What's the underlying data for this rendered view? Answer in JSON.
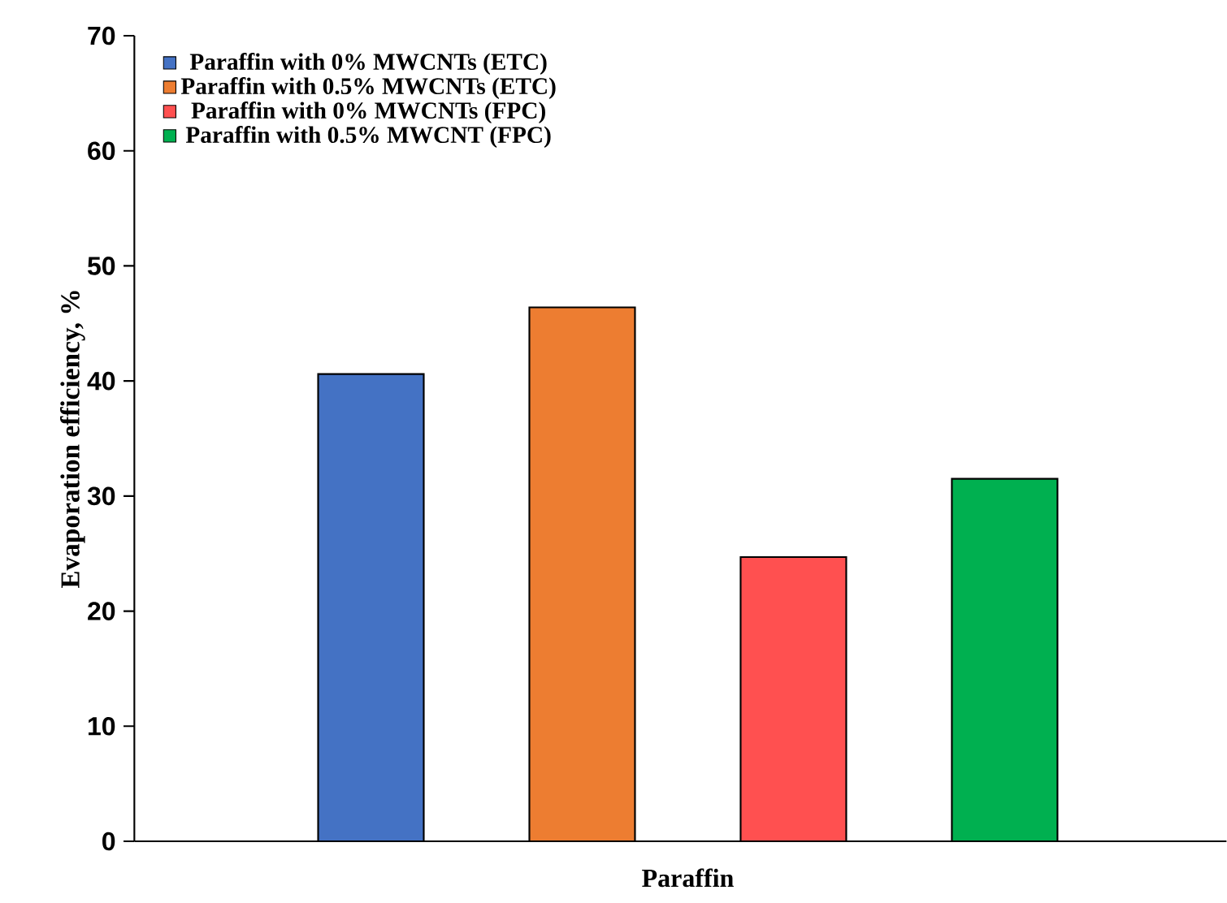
{
  "chart_data": {
    "type": "bar",
    "ylabel": "Evaporation efficiency, %",
    "categories": [
      "Paraffin"
    ],
    "series": [
      {
        "name": "Paraffin with 0% MWCNTs (ETC)",
        "color": "#4472c4",
        "values": [
          40.6
        ]
      },
      {
        "name": "Paraffin with 0.5% MWCNTs (ETC)",
        "color": "#ed7d31",
        "values": [
          46.4
        ]
      },
      {
        "name": "Paraffin with 0% MWCNTs (FPC)",
        "color": "#ff5050",
        "values": [
          24.7
        ]
      },
      {
        "name": "Paraffin with 0.5% MWCNT (FPC)",
        "color": "#00b050",
        "values": [
          31.5
        ]
      }
    ],
    "ylim": [
      0,
      70
    ],
    "yticks": [
      0,
      10,
      20,
      30,
      40,
      50,
      60,
      70
    ],
    "grid": false,
    "legend": "top left"
  }
}
